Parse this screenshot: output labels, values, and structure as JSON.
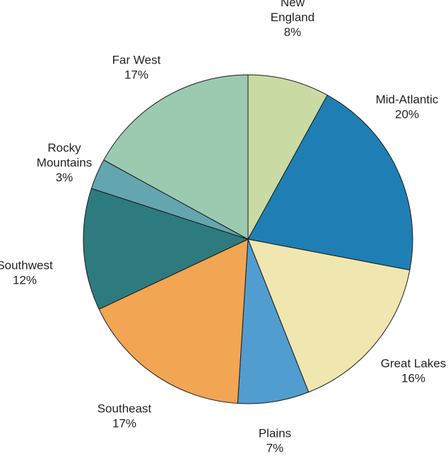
{
  "chart_data": {
    "type": "pie",
    "start_angle_deg": 0,
    "direction": "clockwise",
    "slices": [
      {
        "label": [
          "New",
          "England"
        ],
        "percent_label": "8%",
        "value": 8,
        "color": "#c9dba3"
      },
      {
        "label": [
          "Mid-Atlantic"
        ],
        "percent_label": "20%",
        "value": 20,
        "color": "#1f7fb4"
      },
      {
        "label": [
          "Great Lakes"
        ],
        "percent_label": "16%",
        "value": 16,
        "color": "#f0e6b0"
      },
      {
        "label": [
          "Plains"
        ],
        "percent_label": "7%",
        "value": 7,
        "color": "#529dcf"
      },
      {
        "label": [
          "Southeast"
        ],
        "percent_label": "17%",
        "value": 17,
        "color": "#f2a553"
      },
      {
        "label": [
          "Southwest"
        ],
        "percent_label": "12%",
        "value": 12,
        "color": "#2e7b7f"
      },
      {
        "label": [
          "Rocky",
          "Mountains"
        ],
        "percent_label": "3%",
        "value": 3,
        "color": "#64a6b0"
      },
      {
        "label": [
          "Far West"
        ],
        "percent_label": "17%",
        "value": 17,
        "color": "#9ccab1"
      }
    ]
  }
}
